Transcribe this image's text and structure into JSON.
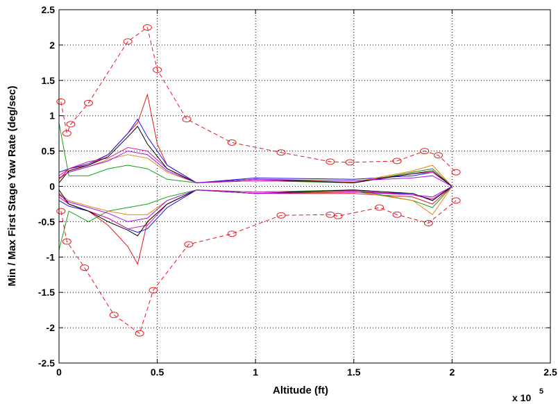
{
  "chart_data": {
    "type": "line",
    "title": "",
    "xlabel": "Altitude (ft)",
    "ylabel": "Min / Max First Stage Yaw Rate (deg/sec)",
    "x_multiplier": "x 10",
    "x_multiplier_exp": "5",
    "xlim": [
      0,
      2.5
    ],
    "ylim": [
      -2.5,
      2.5
    ],
    "xticks": [
      "0",
      "0.5",
      "1",
      "1.5",
      "2",
      "2.5"
    ],
    "yticks": [
      "-2.5",
      "-2",
      "-1.5",
      "-1",
      "-0.5",
      "0",
      "0.5",
      "1",
      "1.5",
      "2",
      "2.5"
    ],
    "grid": true,
    "legend": "none",
    "envelope": {
      "color": "#e8141c",
      "style": "dashed with circle markers",
      "upper": [
        [
          0.01,
          1.2
        ],
        [
          0.04,
          0.75
        ],
        [
          0.06,
          0.88
        ],
        [
          0.15,
          1.18
        ],
        [
          0.35,
          2.05
        ],
        [
          0.45,
          2.25
        ],
        [
          0.5,
          1.65
        ],
        [
          0.65,
          0.95
        ],
        [
          0.88,
          0.62
        ],
        [
          1.13,
          0.48
        ],
        [
          1.38,
          0.35
        ],
        [
          1.48,
          0.34
        ],
        [
          1.72,
          0.36
        ],
        [
          1.86,
          0.5
        ],
        [
          1.93,
          0.44
        ],
        [
          2.02,
          0.2
        ]
      ],
      "lower": [
        [
          0.01,
          -0.35
        ],
        [
          0.04,
          -0.78
        ],
        [
          0.13,
          -1.15
        ],
        [
          0.28,
          -1.82
        ],
        [
          0.41,
          -2.08
        ],
        [
          0.48,
          -1.47
        ],
        [
          0.66,
          -0.82
        ],
        [
          0.88,
          -0.67
        ],
        [
          1.13,
          -0.41
        ],
        [
          1.38,
          -0.4
        ],
        [
          1.42,
          -0.42
        ],
        [
          1.63,
          -0.3
        ],
        [
          1.72,
          -0.4
        ],
        [
          1.88,
          -0.52
        ],
        [
          2.02,
          -0.2
        ]
      ]
    },
    "series": [
      {
        "color": "#e8141c",
        "upper": [
          [
            0,
            0.1
          ],
          [
            0.05,
            0.25
          ],
          [
            0.15,
            0.3
          ],
          [
            0.25,
            0.45
          ],
          [
            0.35,
            0.75
          ],
          [
            0.4,
            0.9
          ],
          [
            0.45,
            1.3
          ],
          [
            0.5,
            0.6
          ],
          [
            0.55,
            0.3
          ],
          [
            0.7,
            0.05
          ],
          [
            1.0,
            0.1
          ],
          [
            1.5,
            0.05
          ],
          [
            1.8,
            0.2
          ],
          [
            1.9,
            0.25
          ],
          [
            2.0,
            0.0
          ]
        ],
        "lower": [
          [
            0,
            -0.1
          ],
          [
            0.05,
            -0.25
          ],
          [
            0.15,
            -0.35
          ],
          [
            0.25,
            -0.55
          ],
          [
            0.35,
            -0.85
          ],
          [
            0.4,
            -1.1
          ],
          [
            0.45,
            -0.5
          ],
          [
            0.55,
            -0.25
          ],
          [
            0.7,
            -0.05
          ],
          [
            1.0,
            -0.1
          ],
          [
            1.5,
            -0.1
          ],
          [
            1.8,
            -0.15
          ],
          [
            1.9,
            -0.25
          ],
          [
            2.0,
            0.0
          ]
        ]
      },
      {
        "color": "#1414e6",
        "upper": [
          [
            0,
            0.2
          ],
          [
            0.05,
            0.25
          ],
          [
            0.15,
            0.32
          ],
          [
            0.25,
            0.45
          ],
          [
            0.35,
            0.75
          ],
          [
            0.4,
            0.95
          ],
          [
            0.45,
            0.7
          ],
          [
            0.55,
            0.3
          ],
          [
            0.7,
            0.05
          ],
          [
            1.0,
            0.12
          ],
          [
            1.5,
            0.1
          ],
          [
            1.8,
            0.15
          ],
          [
            1.9,
            0.2
          ],
          [
            2.0,
            0.0
          ]
        ],
        "lower": [
          [
            0,
            -0.2
          ],
          [
            0.05,
            -0.28
          ],
          [
            0.15,
            -0.35
          ],
          [
            0.25,
            -0.45
          ],
          [
            0.35,
            -0.6
          ],
          [
            0.4,
            -0.65
          ],
          [
            0.45,
            -0.6
          ],
          [
            0.55,
            -0.3
          ],
          [
            0.7,
            -0.05
          ],
          [
            1.0,
            -0.1
          ],
          [
            1.5,
            -0.08
          ],
          [
            1.8,
            -0.1
          ],
          [
            1.9,
            -0.2
          ],
          [
            2.0,
            0.0
          ]
        ]
      },
      {
        "color": "#14a014",
        "upper": [
          [
            0,
            0.9
          ],
          [
            0.05,
            0.15
          ],
          [
            0.15,
            0.15
          ],
          [
            0.25,
            0.25
          ],
          [
            0.35,
            0.3
          ],
          [
            0.45,
            0.25
          ],
          [
            0.55,
            0.1
          ],
          [
            0.7,
            0.05
          ],
          [
            1.0,
            0.08
          ],
          [
            1.5,
            0.05
          ],
          [
            1.8,
            0.2
          ],
          [
            1.9,
            0.25
          ],
          [
            2.0,
            0.0
          ]
        ],
        "lower": [
          [
            0,
            -0.9
          ],
          [
            0.05,
            -0.35
          ],
          [
            0.15,
            -0.5
          ],
          [
            0.25,
            -0.35
          ],
          [
            0.35,
            -0.3
          ],
          [
            0.45,
            -0.25
          ],
          [
            0.55,
            -0.15
          ],
          [
            0.7,
            -0.05
          ],
          [
            1.0,
            -0.08
          ],
          [
            1.5,
            -0.05
          ],
          [
            1.8,
            -0.2
          ],
          [
            1.9,
            -0.3
          ],
          [
            2.0,
            0.0
          ]
        ]
      },
      {
        "color": "#e6149b",
        "upper": [
          [
            0,
            0.15
          ],
          [
            0.05,
            0.25
          ],
          [
            0.15,
            0.35
          ],
          [
            0.25,
            0.4
          ],
          [
            0.35,
            0.55
          ],
          [
            0.45,
            0.5
          ],
          [
            0.55,
            0.25
          ],
          [
            0.7,
            0.05
          ],
          [
            1.0,
            0.08
          ],
          [
            1.5,
            0.06
          ],
          [
            1.8,
            0.18
          ],
          [
            1.9,
            0.2
          ],
          [
            2.0,
            0.0
          ]
        ],
        "lower": [
          [
            0,
            -0.15
          ],
          [
            0.05,
            -0.25
          ],
          [
            0.15,
            -0.35
          ],
          [
            0.25,
            -0.45
          ],
          [
            0.35,
            -0.6
          ],
          [
            0.45,
            -0.55
          ],
          [
            0.55,
            -0.25
          ],
          [
            0.7,
            -0.05
          ],
          [
            1.0,
            -0.08
          ],
          [
            1.5,
            -0.06
          ],
          [
            1.8,
            -0.12
          ],
          [
            1.9,
            -0.18
          ],
          [
            2.0,
            0.0
          ]
        ]
      },
      {
        "color": "#e68214",
        "upper": [
          [
            0,
            0.1
          ],
          [
            0.05,
            0.2
          ],
          [
            0.15,
            0.28
          ],
          [
            0.25,
            0.38
          ],
          [
            0.35,
            0.45
          ],
          [
            0.45,
            0.4
          ],
          [
            0.55,
            0.2
          ],
          [
            0.7,
            0.05
          ],
          [
            1.0,
            0.1
          ],
          [
            1.5,
            0.06
          ],
          [
            1.8,
            0.22
          ],
          [
            1.9,
            0.3
          ],
          [
            2.0,
            0.0
          ]
        ],
        "lower": [
          [
            0,
            -0.1
          ],
          [
            0.05,
            -0.2
          ],
          [
            0.15,
            -0.28
          ],
          [
            0.25,
            -0.35
          ],
          [
            0.35,
            -0.4
          ],
          [
            0.45,
            -0.4
          ],
          [
            0.55,
            -0.2
          ],
          [
            0.7,
            -0.05
          ],
          [
            1.0,
            -0.1
          ],
          [
            1.5,
            -0.07
          ],
          [
            1.8,
            -0.2
          ],
          [
            1.9,
            -0.4
          ],
          [
            2.0,
            0.0
          ]
        ]
      },
      {
        "color": "#000000",
        "upper": [
          [
            0,
            0.05
          ],
          [
            0.05,
            0.22
          ],
          [
            0.15,
            0.3
          ],
          [
            0.25,
            0.42
          ],
          [
            0.35,
            0.7
          ],
          [
            0.4,
            0.85
          ],
          [
            0.45,
            0.6
          ],
          [
            0.55,
            0.25
          ],
          [
            0.7,
            0.05
          ],
          [
            1.0,
            0.1
          ],
          [
            1.5,
            0.05
          ],
          [
            1.8,
            0.18
          ],
          [
            1.9,
            0.22
          ],
          [
            2.0,
            0.0
          ]
        ],
        "lower": [
          [
            0,
            -0.05
          ],
          [
            0.05,
            -0.25
          ],
          [
            0.15,
            -0.35
          ],
          [
            0.25,
            -0.5
          ],
          [
            0.35,
            -0.62
          ],
          [
            0.4,
            -0.7
          ],
          [
            0.45,
            -0.5
          ],
          [
            0.55,
            -0.25
          ],
          [
            0.7,
            -0.05
          ],
          [
            1.0,
            -0.1
          ],
          [
            1.5,
            -0.05
          ],
          [
            1.8,
            -0.1
          ],
          [
            1.9,
            -0.2
          ],
          [
            2.0,
            0.0
          ]
        ]
      },
      {
        "color": "#9b14e6",
        "upper": [
          [
            0,
            0.12
          ],
          [
            0.05,
            0.2
          ],
          [
            0.15,
            0.28
          ],
          [
            0.25,
            0.36
          ],
          [
            0.35,
            0.5
          ],
          [
            0.45,
            0.45
          ],
          [
            0.55,
            0.22
          ],
          [
            0.7,
            0.05
          ],
          [
            1.0,
            0.1
          ],
          [
            1.5,
            0.08
          ],
          [
            1.8,
            0.12
          ],
          [
            1.9,
            0.15
          ],
          [
            2.0,
            0.0
          ]
        ],
        "lower": [
          [
            0,
            -0.12
          ],
          [
            0.05,
            -0.22
          ],
          [
            0.15,
            -0.3
          ],
          [
            0.25,
            -0.38
          ],
          [
            0.35,
            -0.5
          ],
          [
            0.45,
            -0.45
          ],
          [
            0.55,
            -0.2
          ],
          [
            0.7,
            -0.05
          ],
          [
            1.0,
            -0.1
          ],
          [
            1.5,
            -0.08
          ],
          [
            1.8,
            -0.12
          ],
          [
            1.9,
            -0.15
          ],
          [
            2.0,
            0.0
          ]
        ]
      }
    ]
  }
}
